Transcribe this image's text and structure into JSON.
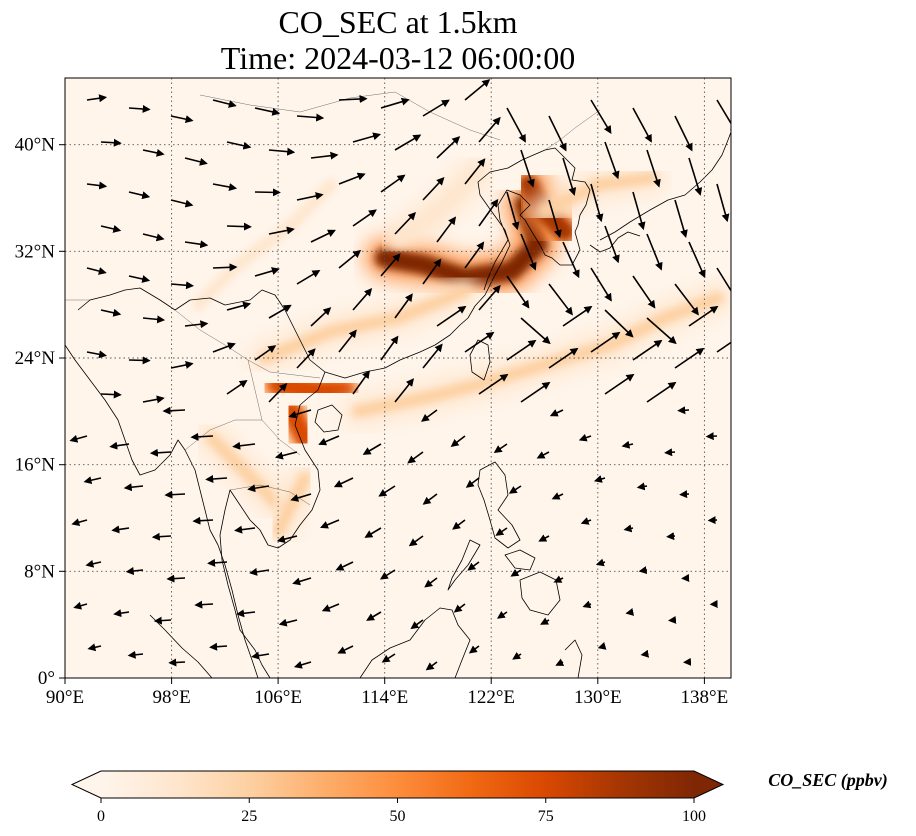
{
  "title": {
    "line1": "CO_SEC at 1.5km",
    "line2": "Time: 2024-03-12 06:00:00"
  },
  "map": {
    "extent": {
      "lon": [
        90,
        140
      ],
      "lat": [
        0,
        45
      ]
    },
    "lon_ticks": [
      {
        "value": 90,
        "label": "90°E"
      },
      {
        "value": 98,
        "label": "98°E"
      },
      {
        "value": 106,
        "label": "106°E"
      },
      {
        "value": 114,
        "label": "114°E"
      },
      {
        "value": 122,
        "label": "122°E"
      },
      {
        "value": 130,
        "label": "130°E"
      },
      {
        "value": 138,
        "label": "138°E"
      }
    ],
    "lat_ticks": [
      {
        "value": 0,
        "label": "0°"
      },
      {
        "value": 8,
        "label": "8°N"
      },
      {
        "value": 16,
        "label": "16°N"
      },
      {
        "value": 24,
        "label": "24°N"
      },
      {
        "value": 32,
        "label": "32°N"
      },
      {
        "value": 40,
        "label": "40°N"
      }
    ],
    "gridlines": true,
    "colormap": [
      "#fff5eb",
      "#fee6ce",
      "#fdd0a2",
      "#fdae6b",
      "#fd8d3c",
      "#f16913",
      "#d94801",
      "#a63603",
      "#7f2704"
    ],
    "plumes": [
      {
        "points": [
          [
            124.5,
            35.5
          ],
          [
            125.5,
            32.5
          ],
          [
            123.5,
            30.5
          ],
          [
            120,
            30
          ],
          [
            117,
            31
          ],
          [
            114,
            31.5
          ]
        ],
        "level": 100
      },
      {
        "points": [
          [
            124.8,
            37
          ],
          [
            126,
            35
          ],
          [
            127.5,
            33.5
          ]
        ],
        "level": 90
      },
      {
        "points": [
          [
            106,
            22
          ],
          [
            109,
            21.5
          ],
          [
            111,
            21.5
          ]
        ],
        "level": 80
      },
      {
        "points": [
          [
            107,
            20
          ],
          [
            108,
            18
          ]
        ],
        "level": 70
      },
      {
        "points": [
          [
            112,
            20
          ],
          [
            117,
            21
          ],
          [
            121,
            22
          ],
          [
            126,
            23.5
          ],
          [
            131,
            25
          ],
          [
            135,
            27
          ],
          [
            139,
            28.5
          ]
        ],
        "level": 30
      },
      {
        "points": [
          [
            126,
            35
          ],
          [
            130,
            37
          ],
          [
            134,
            37.5
          ]
        ],
        "level": 30
      },
      {
        "points": [
          [
            105,
            24
          ],
          [
            110,
            26
          ],
          [
            115,
            27
          ],
          [
            120,
            29
          ]
        ],
        "level": 20
      },
      {
        "points": [
          [
            101,
            18
          ],
          [
            104,
            15
          ],
          [
            106,
            13
          ]
        ],
        "level": 20
      },
      {
        "points": [
          [
            108,
            15
          ],
          [
            106,
            11
          ]
        ],
        "level": 25
      },
      {
        "points": [
          [
            115,
            33
          ],
          [
            118,
            35
          ],
          [
            121,
            38
          ]
        ],
        "level": 15
      },
      {
        "points": [
          [
            100,
            28
          ],
          [
            103,
            31
          ],
          [
            107,
            34
          ],
          [
            110,
            37
          ]
        ],
        "level": 10
      }
    ]
  },
  "colorbar": {
    "label": "CO_SEC (ppbv)",
    "min": 0,
    "max": 100,
    "extend": "both",
    "ticks": [
      {
        "value": 0,
        "label": "0"
      },
      {
        "value": 25,
        "label": "25"
      },
      {
        "value": 50,
        "label": "50"
      },
      {
        "value": 75,
        "label": "75"
      },
      {
        "value": 100,
        "label": "100"
      }
    ]
  }
}
